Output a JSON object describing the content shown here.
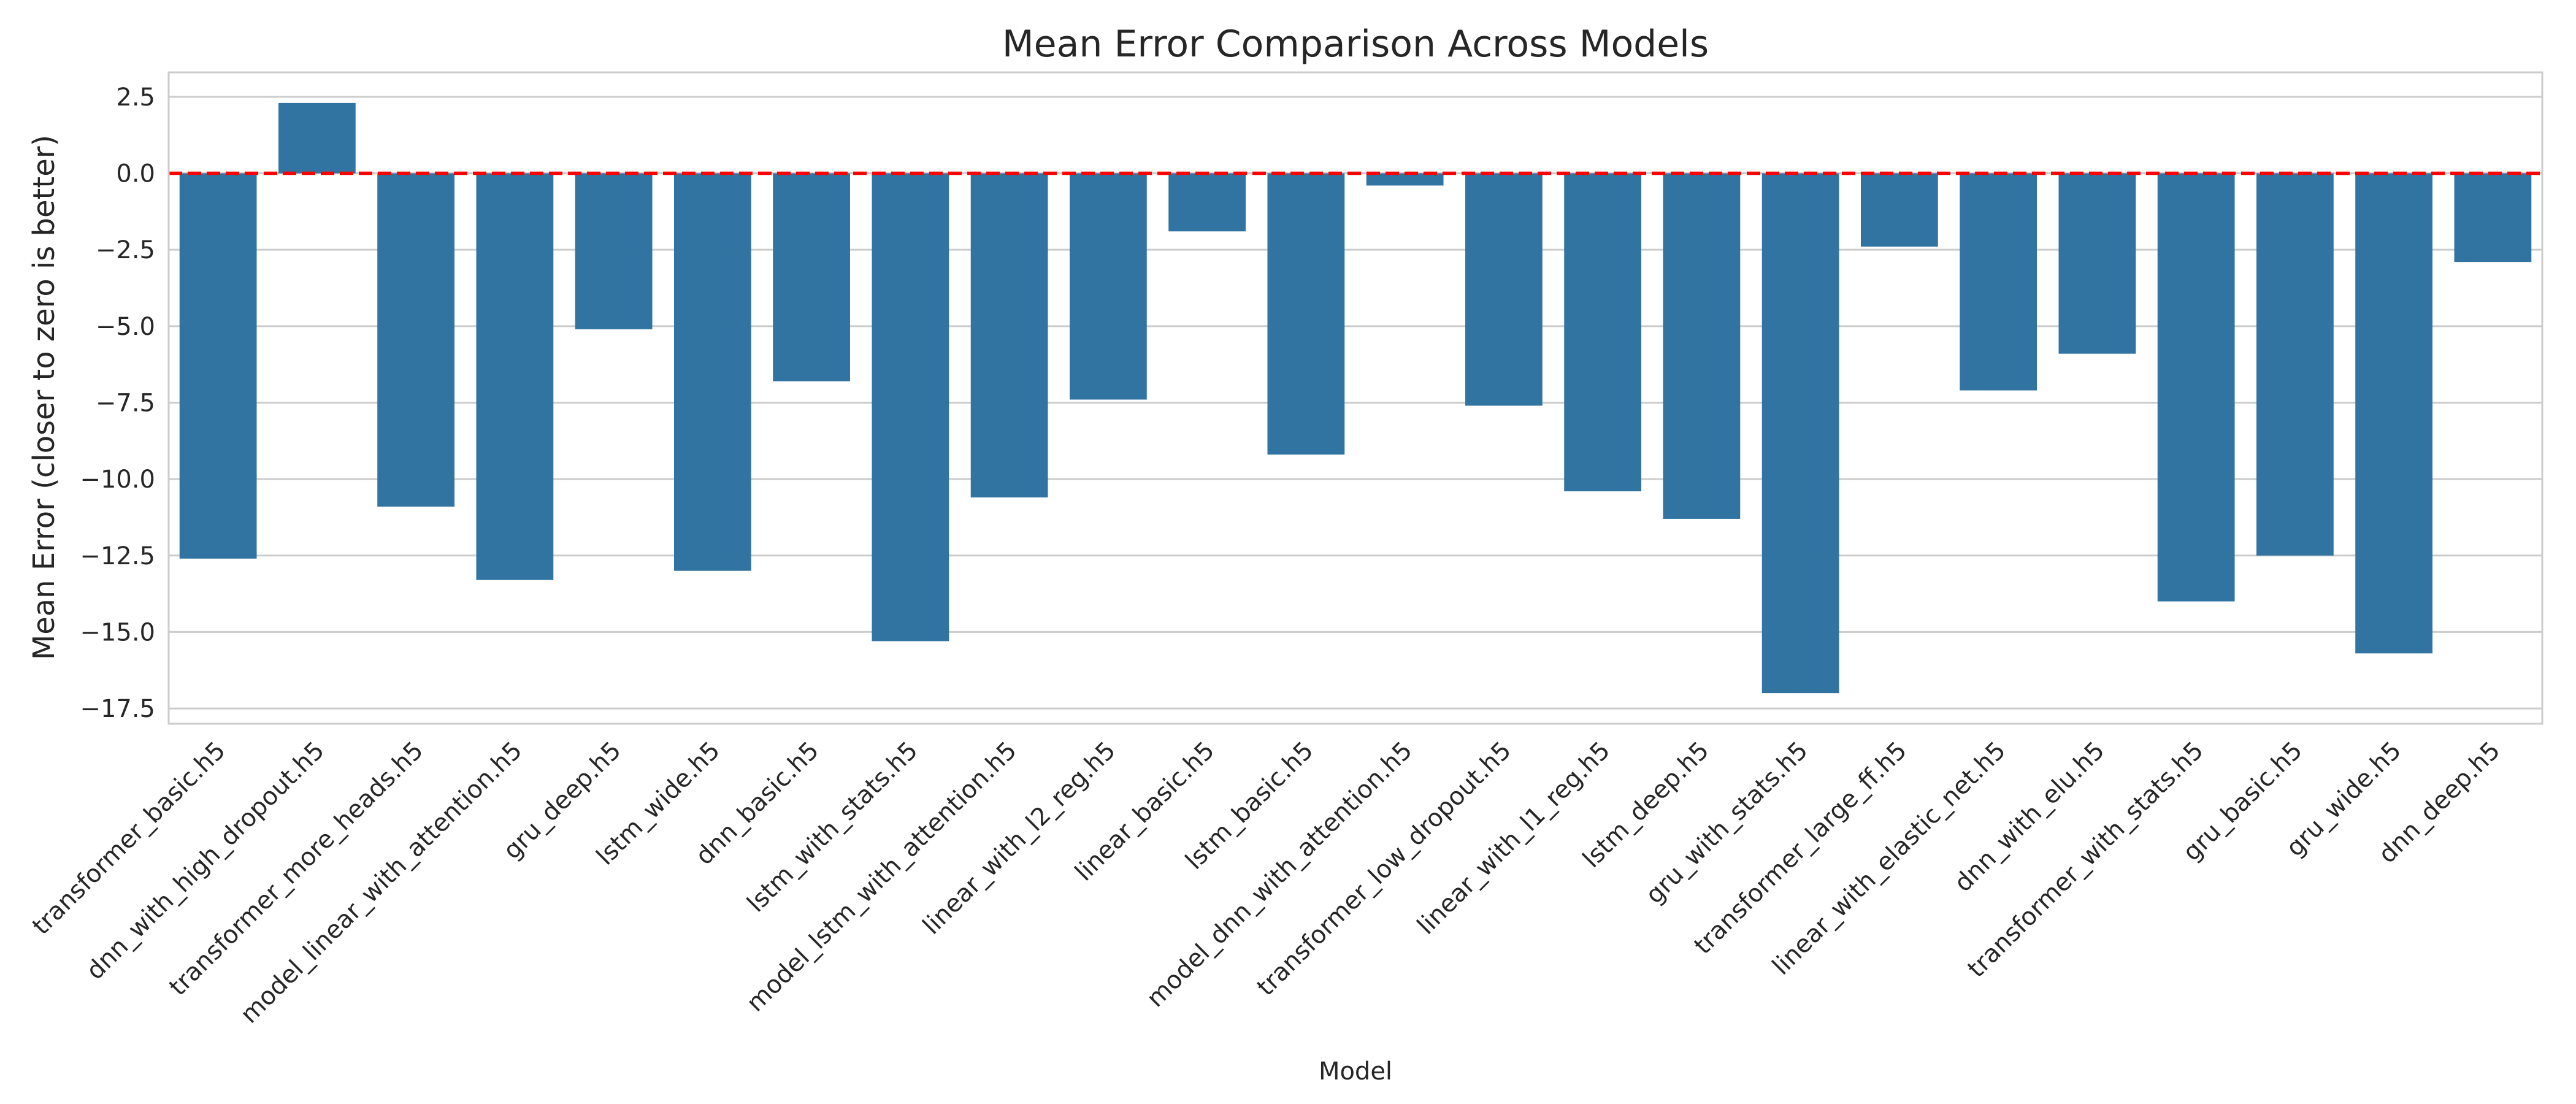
{
  "chart_data": {
    "type": "bar",
    "title": "Mean Error Comparison Across Models",
    "xlabel": "Model",
    "ylabel": "Mean Error (closer to zero is better)",
    "ylim": [
      -18.0,
      3.3
    ],
    "yticks": [
      2.5,
      0.0,
      -2.5,
      -5.0,
      -7.5,
      -10.0,
      -12.5,
      -15.0,
      -17.5
    ],
    "ytick_labels": [
      "2.5",
      "0.0",
      "−2.5",
      "−5.0",
      "−7.5",
      "−10.0",
      "−12.5",
      "−15.0",
      "−17.5"
    ],
    "grid": "horizontal",
    "reference_line": {
      "y": 0,
      "color": "#ff0000",
      "style": "dashed"
    },
    "bar_color": "#3274a1",
    "categories": [
      "transformer_basic.h5",
      "dnn_with_high_dropout.h5",
      "transformer_more_heads.h5",
      "model_linear_with_attention.h5",
      "gru_deep.h5",
      "lstm_wide.h5",
      "dnn_basic.h5",
      "lstm_with_stats.h5",
      "model_lstm_with_attention.h5",
      "linear_with_l2_reg.h5",
      "linear_basic.h5",
      "lstm_basic.h5",
      "model_dnn_with_attention.h5",
      "transformer_low_dropout.h5",
      "linear_with_l1_reg.h5",
      "lstm_deep.h5",
      "gru_with_stats.h5",
      "transformer_large_ff.h5",
      "linear_with_elastic_net.h5",
      "dnn_with_elu.h5",
      "transformer_with_stats.h5",
      "gru_basic.h5",
      "gru_wide.h5",
      "dnn_deep.h5"
    ],
    "values": [
      -12.6,
      2.3,
      -10.9,
      -13.3,
      -5.1,
      -13.0,
      -6.8,
      -15.3,
      -10.6,
      -7.4,
      -1.9,
      -9.2,
      -0.4,
      -7.6,
      -10.4,
      -11.3,
      -17.0,
      -2.4,
      -7.1,
      -5.9,
      -14.0,
      -12.5,
      -15.7,
      -2.9
    ]
  }
}
